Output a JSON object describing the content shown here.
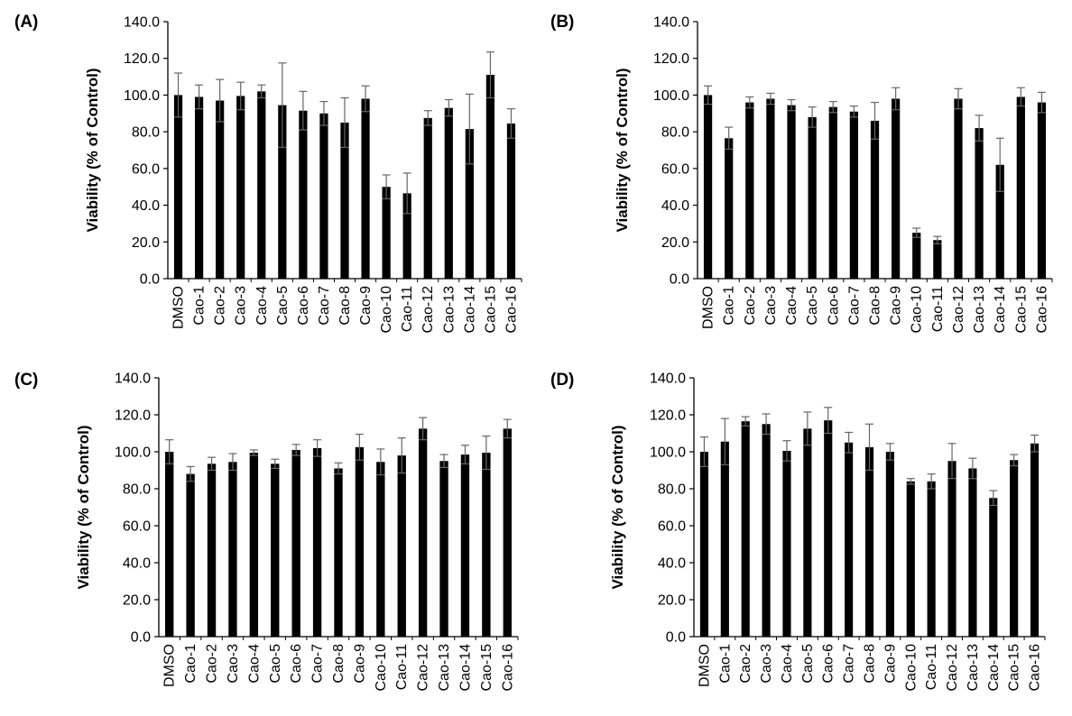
{
  "chart_data": [
    {
      "panel": "(A)",
      "type": "bar",
      "ylabel": "Viability (% of Control)",
      "ylim": [
        0,
        140
      ],
      "yticks": [
        "0.0",
        "20.0",
        "40.0",
        "60.0",
        "80.0",
        "100.0",
        "120.0",
        "140.0"
      ],
      "grid": false,
      "categories": [
        "DMSO",
        "Cao-1",
        "Cao-2",
        "Cao-3",
        "Cao-4",
        "Cao-5",
        "Cao-6",
        "Cao-7",
        "Cao-8",
        "Cao-9",
        "Cao-10",
        "Cao-11",
        "Cao-12",
        "Cao-13",
        "Cao-14",
        "Cao-15",
        "Cao-16"
      ],
      "values": [
        100,
        99,
        97,
        99.5,
        102,
        94.5,
        91.5,
        90,
        85,
        98,
        50,
        46.5,
        87.5,
        93,
        81.5,
        111,
        84.5
      ],
      "errors": [
        12,
        6.5,
        11.5,
        7.5,
        3.5,
        23,
        10.5,
        6.5,
        13.5,
        7,
        6.5,
        11,
        4,
        4.5,
        19,
        12.5,
        8
      ]
    },
    {
      "panel": "(B)",
      "type": "bar",
      "ylabel": "Viability (% of Control)",
      "ylim": [
        0,
        140
      ],
      "yticks": [
        "0.0",
        "20.0",
        "40.0",
        "60.0",
        "80.0",
        "100.0",
        "120.0",
        "140.0"
      ],
      "grid": false,
      "categories": [
        "DMSO",
        "Cao-1",
        "Cao-2",
        "Cao-3",
        "Cao-4",
        "Cao-5",
        "Cao-6",
        "Cao-7",
        "Cao-8",
        "Cao-9",
        "Cao-10",
        "Cao-11",
        "Cao-12",
        "Cao-13",
        "Cao-14",
        "Cao-15",
        "Cao-16"
      ],
      "values": [
        100,
        76.5,
        96,
        98,
        94.5,
        88,
        93.5,
        91,
        86,
        98,
        25,
        21,
        98,
        82,
        62,
        99,
        96
      ],
      "errors": [
        5,
        6,
        3,
        3,
        3,
        5.5,
        3,
        3,
        10,
        6,
        2.5,
        2,
        5.5,
        7,
        14.5,
        5,
        5.5
      ]
    },
    {
      "panel": "(C)",
      "type": "bar",
      "ylabel": "Viability (% of Control)",
      "ylim": [
        0,
        140
      ],
      "yticks": [
        "0.0",
        "20.0",
        "40.0",
        "60.0",
        "80.0",
        "100.0",
        "120.0",
        "140.0"
      ],
      "grid": false,
      "categories": [
        "DMSO",
        "Cao-1",
        "Cao-2",
        "Cao-3",
        "Cao-4",
        "Cao-5",
        "Cao-6",
        "Cao-7",
        "Cao-8",
        "Cao-9",
        "Cao-10",
        "Cao-11",
        "Cao-12",
        "Cao-13",
        "Cao-14",
        "Cao-15",
        "Cao-16"
      ],
      "values": [
        100,
        88,
        93.5,
        94.5,
        99.5,
        93.5,
        101,
        102,
        91,
        102.5,
        94.5,
        98,
        112.5,
        95,
        98.5,
        99.5,
        112.5
      ],
      "errors": [
        6.5,
        4,
        3.5,
        4.5,
        1.5,
        2.5,
        3,
        4.5,
        3,
        7,
        7,
        9.5,
        6,
        3.5,
        5,
        9,
        5
      ]
    },
    {
      "panel": "(D)",
      "type": "bar",
      "ylabel": "Viability (% of Control)",
      "ylim": [
        0,
        140
      ],
      "yticks": [
        "0.0",
        "20.0",
        "40.0",
        "60.0",
        "80.0",
        "100.0",
        "120.0",
        "140.0"
      ],
      "grid": false,
      "categories": [
        "DMSO",
        "Cao-1",
        "Cao-2",
        "Cao-3",
        "Cao-4",
        "Cao-5",
        "Cao-6",
        "Cao-7",
        "Cao-8",
        "Cao-9",
        "Cao-10",
        "Cao-11",
        "Cao-12",
        "Cao-13",
        "Cao-14",
        "Cao-15",
        "Cao-16"
      ],
      "values": [
        100,
        105.5,
        116.5,
        115,
        100.5,
        112.5,
        117,
        105,
        102.5,
        100,
        84,
        84,
        95,
        91,
        75,
        95.5,
        104.5
      ],
      "errors": [
        8,
        12.5,
        2.5,
        5.5,
        5.5,
        9,
        7,
        5.5,
        12.5,
        4.5,
        1.5,
        4,
        9.5,
        5.5,
        4,
        3,
        4.5
      ]
    }
  ]
}
